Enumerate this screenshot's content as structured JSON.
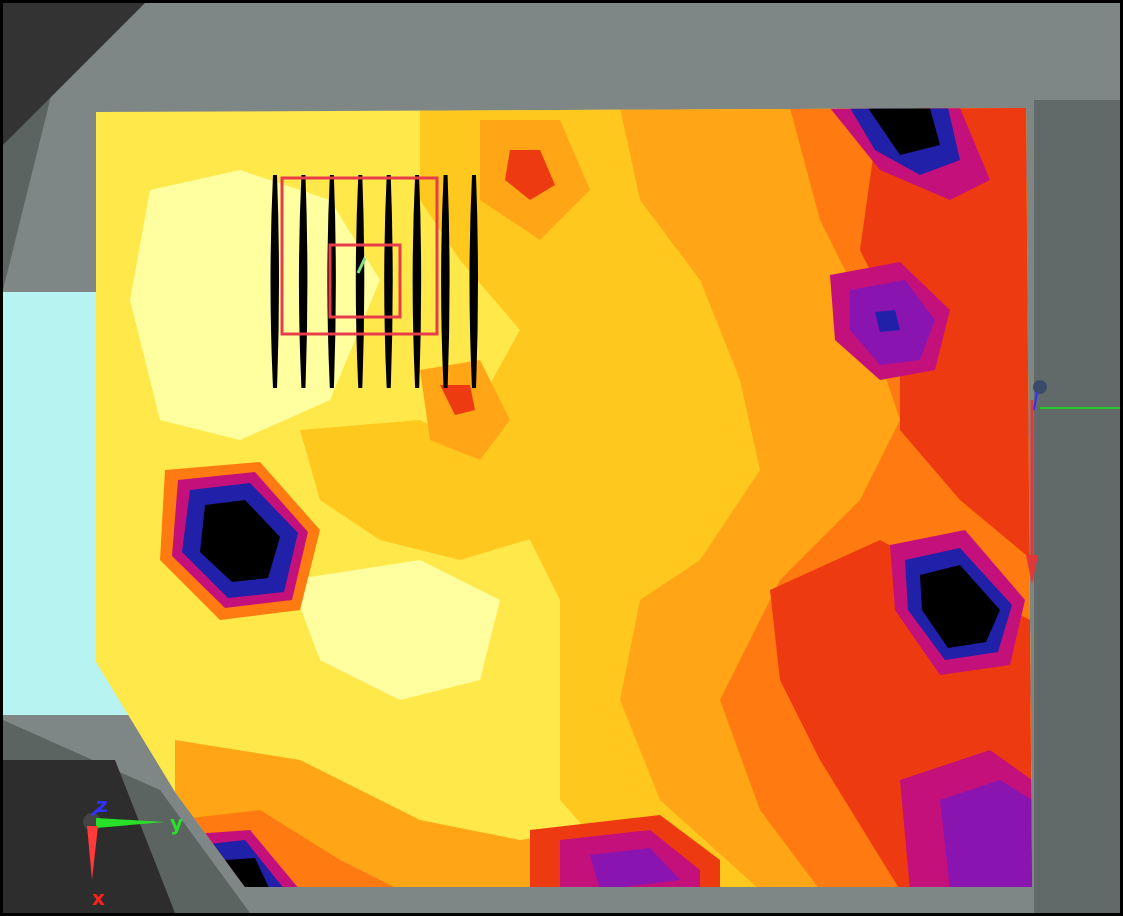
{
  "viewport": {
    "frame_color": "#000000",
    "background_color": "#5c6462"
  },
  "floor_plan": {
    "room_frame_color": "#7f8786",
    "corner_region_color": "#3a3a3a",
    "window_panel_color": "#b7f3f1"
  },
  "heatmap": {
    "palette": [
      "#ffffa0",
      "#ffe84a",
      "#ffc81e",
      "#ffa516",
      "#ff7a10",
      "#ee3a10",
      "#c4107a",
      "#8a14b0",
      "#2020a8",
      "#000000"
    ]
  },
  "furniture": {
    "bed_outline_color": "#e63c4c",
    "slat_color": "#000000",
    "slat_count": 8
  },
  "origin_triad": {
    "labels": {
      "x": "x",
      "y": "y",
      "z": "z"
    },
    "colors": {
      "x": "#ff2020",
      "y": "#28e028",
      "z": "#3030ff"
    }
  },
  "side_gizmo": {
    "colors": {
      "vertical": "#e03838",
      "horizontal": "#28c828"
    }
  }
}
